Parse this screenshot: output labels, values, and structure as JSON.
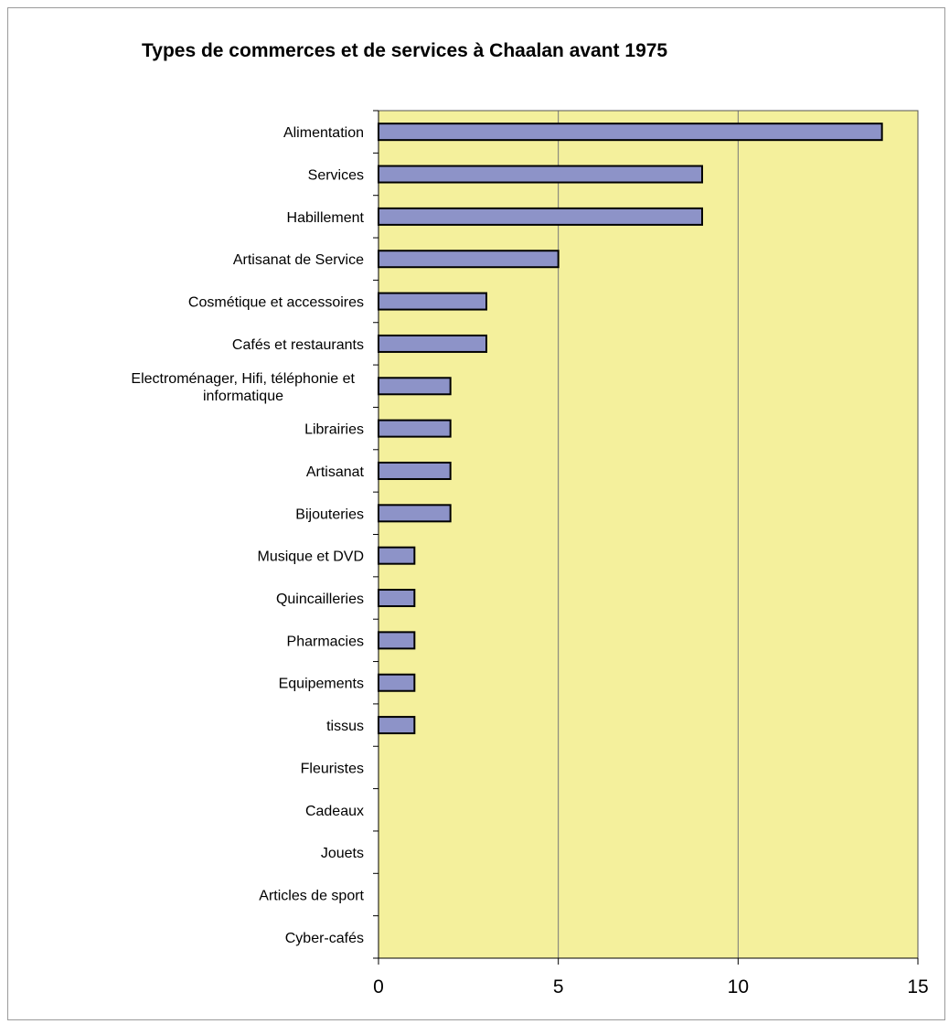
{
  "chart_data": {
    "type": "bar",
    "orientation": "horizontal",
    "title": "Types de commerces et de services à Chaalan avant 1975",
    "xlabel": "",
    "ylabel": "",
    "categories": [
      "Alimentation",
      "Services",
      "Habillement",
      "Artisanat de Service",
      "Cosmétique et accessoires",
      "Cafés et restaurants",
      "Electroménager, Hifi, téléphonie et informatique",
      "Librairies",
      "Artisanat ",
      "Bijouteries",
      "Musique et DVD",
      "Quincailleries",
      "Pharmacies",
      "Equipements",
      "tissus",
      "Fleuristes",
      "Cadeaux",
      "Jouets",
      "Articles de sport",
      "Cyber-cafés"
    ],
    "category_label_lines": [
      [
        "Alimentation"
      ],
      [
        "Services"
      ],
      [
        "Habillement"
      ],
      [
        "Artisanat de Service"
      ],
      [
        "Cosmétique et accessoires"
      ],
      [
        "Cafés et restaurants"
      ],
      [
        "Electroménager, Hifi, téléphonie et",
        "informatique"
      ],
      [
        "Librairies"
      ],
      [
        "Artisanat "
      ],
      [
        "Bijouteries"
      ],
      [
        "Musique et DVD"
      ],
      [
        "Quincailleries"
      ],
      [
        "Pharmacies"
      ],
      [
        "Equipements"
      ],
      [
        "tissus"
      ],
      [
        "Fleuristes"
      ],
      [
        "Cadeaux"
      ],
      [
        "Jouets"
      ],
      [
        "Articles de sport"
      ],
      [
        "Cyber-cafés"
      ]
    ],
    "values": [
      14,
      9,
      9,
      5,
      3,
      3,
      2,
      2,
      2,
      2,
      1,
      1,
      1,
      1,
      1,
      0,
      0,
      0,
      0,
      0
    ],
    "xlim": [
      0,
      15
    ],
    "xticks": [
      0,
      5,
      10,
      15
    ],
    "xtick_labels": [
      "0",
      "5",
      "10",
      "15"
    ],
    "grid": "vertical major gridlines",
    "legend": "none",
    "colors": {
      "plot_background": "#f4f09c",
      "bar_fill": "#8d93c8",
      "bar_stroke": "#000000",
      "gridline": "#777777",
      "frame_border": "#9a9a9a"
    }
  }
}
